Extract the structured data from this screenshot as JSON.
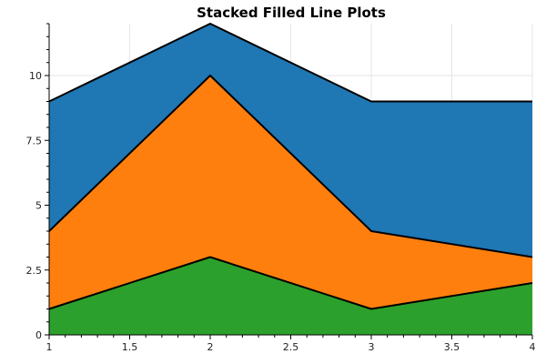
{
  "chart_data": {
    "type": "area",
    "stacked": true,
    "title": "Stacked Filled Line Plots",
    "xlabel": "",
    "ylabel": "",
    "x": [
      1,
      2,
      3,
      4
    ],
    "xlim": [
      1,
      4
    ],
    "ylim": [
      0,
      12
    ],
    "x_ticks": [
      "1",
      "1.5",
      "2",
      "2.5",
      "3",
      "3.5",
      "4"
    ],
    "x_tick_values": [
      1,
      1.5,
      2,
      2.5,
      3,
      3.5,
      4
    ],
    "y_ticks": [
      "0",
      "2.5",
      "5",
      "7.5",
      "10"
    ],
    "y_tick_values": [
      0,
      2.5,
      5,
      7.5,
      10
    ],
    "grid": true,
    "series": [
      {
        "values": [
          1,
          3,
          1,
          2
        ],
        "color": "#2ca02c"
      },
      {
        "values": [
          3,
          7,
          3,
          1
        ],
        "color": "#ff7f0e"
      },
      {
        "values": [
          5,
          2,
          5,
          6
        ],
        "color": "#1f77b4"
      }
    ]
  }
}
